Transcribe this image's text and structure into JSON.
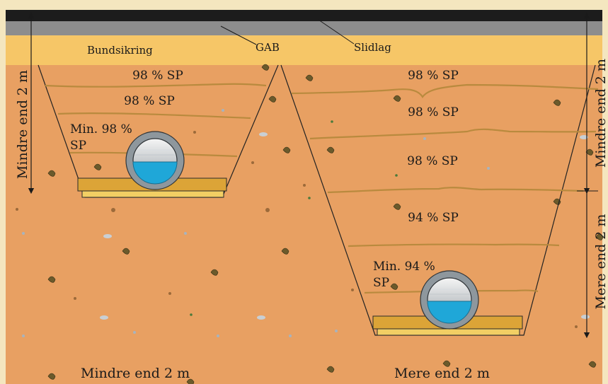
{
  "layers": {
    "slidlag_label": "Slidlag",
    "gab_label": "GAB",
    "bundsikring_label": "Bundsikring"
  },
  "colors": {
    "frame": "#f4e6bf",
    "slidlag": "#1c1c1c",
    "gab": "#8d8d8d",
    "bundsikring": "#f6c667",
    "soil": "#e8a062",
    "compaction_line": "#b98a3e",
    "bedding": "#dca437",
    "pipe_ring": "#8e979d",
    "water": "#1fa7d8"
  },
  "left_trench": {
    "zones": [
      "98 % SP",
      "98 % SP"
    ],
    "pipe_zone_line1": "Min. 98 %",
    "pipe_zone_line2": "SP",
    "depth_label": "Mindre end 2 m",
    "caption": "Mindre end 2 m"
  },
  "right_trench": {
    "zones": [
      "98 % SP",
      "98 % SP",
      "98 % SP",
      "94 % SP"
    ],
    "pipe_zone_line1": "Min. 94 %",
    "pipe_zone_line2": "SP",
    "depth_upper_label": "Mindre end 2 m",
    "depth_lower_label": "Mere end 2 m",
    "caption": "Mere end 2 m"
  }
}
